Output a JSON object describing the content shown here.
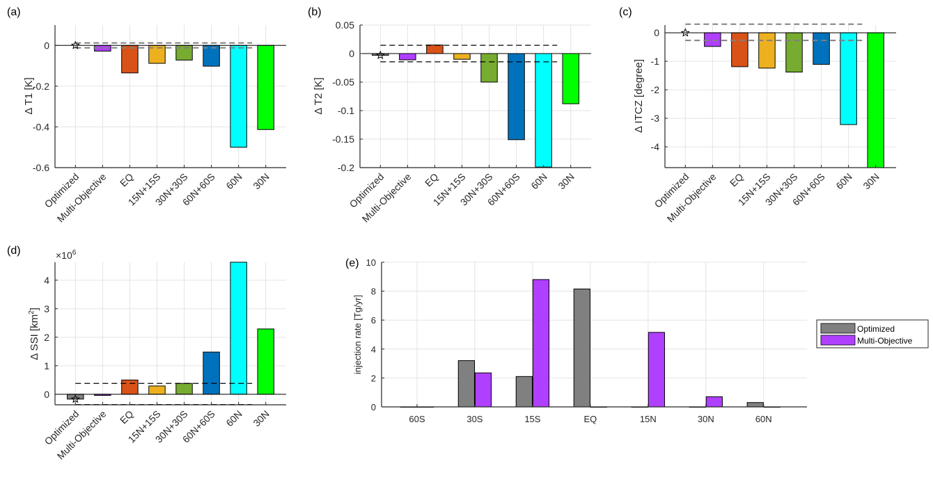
{
  "chart_data": [
    {
      "id": "a",
      "type": "bar",
      "panel_label": "(a)",
      "ylabel": "Δ T1 [K]",
      "categories": [
        "Optimized",
        "Multi-Objective",
        "EQ",
        "15N+15S",
        "30N+30S",
        "60N+60S",
        "60N",
        "30N"
      ],
      "values": [
        0.0,
        -0.028,
        -0.135,
        -0.088,
        -0.072,
        -0.102,
        -0.5,
        -0.413
      ],
      "colors": [
        "#808080",
        "#B040FF",
        "#D95319",
        "#EDB120",
        "#77AC30",
        "#0072BD",
        "#00FFFF",
        "#00FF00"
      ],
      "ylim": [
        -0.6,
        0.1
      ],
      "yticks": [
        0,
        -0.2,
        -0.4,
        -0.6
      ],
      "ytick_labels": [
        "0",
        "-0.2",
        "-0.4",
        "-0.6"
      ],
      "tolerance": [
        0.012,
        -0.012
      ],
      "tolerance_color": "#808080",
      "star_value": 0.0
    },
    {
      "id": "b",
      "type": "bar",
      "panel_label": "(b)",
      "ylabel": "Δ T2 [K]",
      "categories": [
        "Optimized",
        "Multi-Objective",
        "EQ",
        "15N+15S",
        "30N+30S",
        "60N+60S",
        "60N",
        "30N"
      ],
      "values": [
        -0.003,
        -0.011,
        0.015,
        -0.01,
        -0.05,
        -0.151,
        -0.199,
        -0.088
      ],
      "colors": [
        "#808080",
        "#B040FF",
        "#D95319",
        "#EDB120",
        "#77AC30",
        "#0072BD",
        "#00FFFF",
        "#00FF00"
      ],
      "ylim": [
        -0.2,
        0.05
      ],
      "yticks": [
        0.05,
        0,
        -0.05,
        -0.1,
        -0.15,
        -0.2
      ],
      "ytick_labels": [
        "0.05",
        "0",
        "-0.05",
        "-0.1",
        "-0.15",
        "-0.2"
      ],
      "tolerance": [
        0.0145,
        -0.0145
      ],
      "tolerance_color": "#000000",
      "star_value": -0.003
    },
    {
      "id": "c",
      "type": "bar",
      "panel_label": "(c)",
      "ylabel": "Δ ITCZ [degree]",
      "categories": [
        "Optimized",
        "Multi-Objective",
        "EQ",
        "15N+15S",
        "30N+30S",
        "60N+60S",
        "60N",
        "30N"
      ],
      "values": [
        0.0,
        -0.48,
        -1.19,
        -1.24,
        -1.38,
        -1.11,
        -3.22,
        -4.73
      ],
      "colors": [
        "#808080",
        "#B040FF",
        "#D95319",
        "#EDB120",
        "#77AC30",
        "#0072BD",
        "#00FFFF",
        "#00FF00"
      ],
      "ylim": [
        -4.73,
        0.27
      ],
      "yticks": [
        0,
        -1,
        -2,
        -3,
        -4
      ],
      "ytick_labels": [
        "0",
        "-1",
        "-2",
        "-3",
        "-4"
      ],
      "tolerance": [
        0.3,
        -0.27
      ],
      "tolerance_color": "#808080",
      "star_value": 0.0
    },
    {
      "id": "d",
      "type": "bar",
      "panel_label": "(d)",
      "ylabel": "Δ SSI [km²]",
      "ylabel_main": "Δ SSI [km",
      "ylabel_sup": "2",
      "ylabel_end": "]",
      "exponent_label": "×10",
      "exponent_sup": "6",
      "categories": [
        "Optimized",
        "Multi-Objective",
        "EQ",
        "15N+15S",
        "30N+30S",
        "60N+60S",
        "60N",
        "30N"
      ],
      "values": [
        -0.17,
        -0.04,
        0.5,
        0.29,
        0.38,
        1.48,
        4.63,
        2.29
      ],
      "value_scale": 1000000,
      "colors": [
        "#808080",
        "#B040FF",
        "#D95319",
        "#EDB120",
        "#77AC30",
        "#0072BD",
        "#00FFFF",
        "#00FF00"
      ],
      "ylim": [
        -0.37,
        4.63
      ],
      "yticks": [
        0,
        1,
        2,
        3,
        4
      ],
      "ytick_labels": [
        "0",
        "1",
        "2",
        "3",
        "4"
      ],
      "tolerance": [
        0.38,
        -0.36
      ],
      "tolerance_color": "#000000",
      "star_value": -0.17
    },
    {
      "id": "e",
      "type": "bar",
      "panel_label": "(e)",
      "ylabel": "injection rate [Tg/yr]",
      "categories": [
        "60S",
        "30S",
        "15S",
        "EQ",
        "15N",
        "30N",
        "60N"
      ],
      "series": [
        {
          "name": "Optimized",
          "color": "#808080",
          "values": [
            0,
            3.2,
            2.1,
            8.15,
            0,
            0,
            0.3
          ]
        },
        {
          "name": "Multi-Objective",
          "color": "#B040FF",
          "values": [
            0,
            2.35,
            8.8,
            0,
            5.15,
            0.7,
            0
          ]
        }
      ],
      "ylim": [
        0,
        10
      ],
      "yticks": [
        0,
        2,
        4,
        6,
        8,
        10
      ],
      "ytick_labels": [
        "0",
        "2",
        "4",
        "6",
        "8",
        "10"
      ],
      "legend": "right"
    }
  ]
}
